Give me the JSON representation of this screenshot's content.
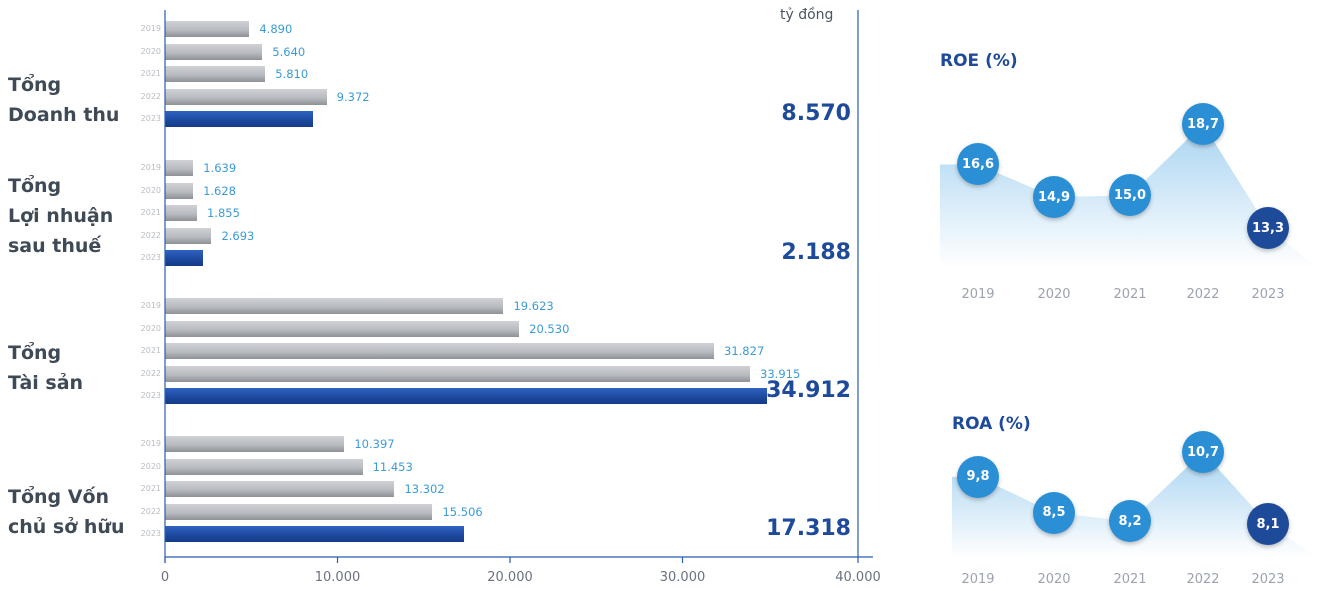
{
  "chart_data": [
    {
      "type": "bar",
      "orientation": "horizontal",
      "unit": "tỷ đồng",
      "xlim": [
        0,
        40000
      ],
      "x_ticks": [
        "0",
        "10.000",
        "20.000",
        "30.000",
        "40.000"
      ],
      "highlight_color": "#1e4a9a",
      "base_color": "#b8bbc0",
      "groups": [
        {
          "label_lines": [
            "Tổng",
            "Doanh thu"
          ],
          "years": [
            "2019",
            "2020",
            "2021",
            "2022",
            "2023"
          ],
          "values": [
            4890,
            5640,
            5810,
            9372,
            8570
          ],
          "value_labels": [
            "4.890",
            "5.640",
            "5.810",
            "9.372",
            "8.570"
          ]
        },
        {
          "label_lines": [
            "Tổng",
            "Lợi nhuận",
            "sau thuế"
          ],
          "years": [
            "2019",
            "2020",
            "2021",
            "2022",
            "2023"
          ],
          "values": [
            1639,
            1628,
            1855,
            2693,
            2188
          ],
          "value_labels": [
            "1.639",
            "1.628",
            "1.855",
            "2.693",
            "2.188"
          ]
        },
        {
          "label_lines": [
            "Tổng",
            "Tài sản"
          ],
          "years": [
            "2019",
            "2020",
            "2021",
            "2022",
            "2023"
          ],
          "values": [
            19623,
            20530,
            31827,
            33915,
            34912
          ],
          "value_labels": [
            "19.623",
            "20.530",
            "31.827",
            "33.915",
            "34.912"
          ]
        },
        {
          "label_lines": [
            "Tổng Vốn",
            "chủ sở hữu"
          ],
          "years": [
            "2019",
            "2020",
            "2021",
            "2022",
            "2023"
          ],
          "values": [
            10397,
            11453,
            13302,
            15506,
            17318
          ],
          "value_labels": [
            "10.397",
            "11.453",
            "13.302",
            "15.506",
            "17.318"
          ]
        }
      ]
    },
    {
      "type": "area",
      "title": "ROE (%)",
      "x": [
        "2019",
        "2020",
        "2021",
        "2022",
        "2023"
      ],
      "values": [
        16.6,
        14.9,
        15.0,
        18.7,
        13.3
      ],
      "value_labels": [
        "16,6",
        "14,9",
        "15,0",
        "18,7",
        "13,3"
      ],
      "point_color": "#2a8fd4",
      "last_point_color": "#1e4a9a"
    },
    {
      "type": "area",
      "title": "ROA (%)",
      "x": [
        "2019",
        "2020",
        "2021",
        "2022",
        "2023"
      ],
      "values": [
        9.8,
        8.5,
        8.2,
        10.7,
        8.1
      ],
      "value_labels": [
        "9,8",
        "8,5",
        "8,2",
        "10,7",
        "8,1"
      ],
      "point_color": "#2a8fd4",
      "last_point_color": "#1e4a9a"
    }
  ]
}
